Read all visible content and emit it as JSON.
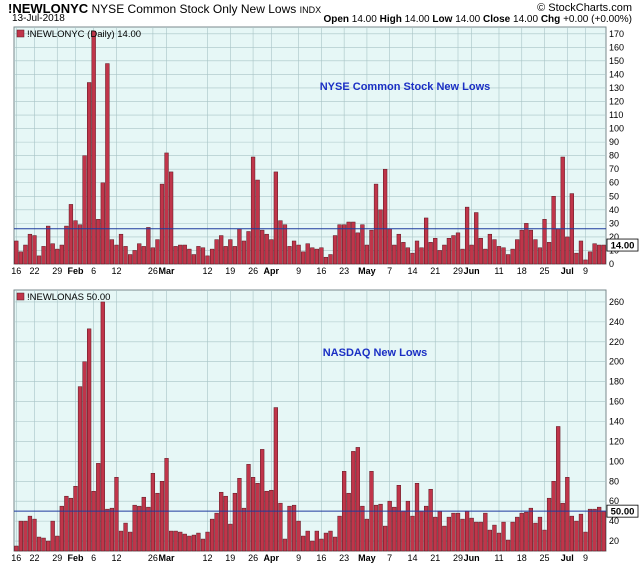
{
  "header": {
    "symbol": "!NEWLONYC",
    "description": "NYSE Common Stock Only New Lows",
    "exchange": "INDX",
    "date": "13-Jul-2018",
    "logo": "© StockCharts.com",
    "quote": {
      "open_label": "Open",
      "open": "14.00",
      "high_label": "High",
      "high": "14.00",
      "low_label": "Low",
      "low": "14.00",
      "close_label": "Close",
      "close": "14.00",
      "chg_label": "Chg",
      "chg": "+0.00 (+0.00%)"
    }
  },
  "colors": {
    "plot_bg": "#e6f7f6",
    "bar_fill": "#c0354a",
    "bar_stroke": "#5a1620",
    "reference_line": "#1f3b9e",
    "annotation": "#1a2fc4",
    "grid": "#a8c4c6",
    "current_value_box": "#ffffff"
  },
  "x_axis": {
    "labels": [
      {
        "i": 0,
        "text": "16",
        "bold": false
      },
      {
        "i": 4,
        "text": "22",
        "bold": false
      },
      {
        "i": 9,
        "text": "29",
        "bold": false
      },
      {
        "i": 13,
        "text": "Feb",
        "bold": true
      },
      {
        "i": 17,
        "text": "6",
        "bold": false
      },
      {
        "i": 22,
        "text": "12",
        "bold": false
      },
      {
        "i": 30,
        "text": "26",
        "bold": false
      },
      {
        "i": 33,
        "text": "Mar",
        "bold": true
      },
      {
        "i": 42,
        "text": "12",
        "bold": false
      },
      {
        "i": 47,
        "text": "19",
        "bold": false
      },
      {
        "i": 52,
        "text": "26",
        "bold": false
      },
      {
        "i": 56,
        "text": "Apr",
        "bold": true
      },
      {
        "i": 62,
        "text": "9",
        "bold": false
      },
      {
        "i": 67,
        "text": "16",
        "bold": false
      },
      {
        "i": 72,
        "text": "23",
        "bold": false
      },
      {
        "i": 77,
        "text": "May",
        "bold": true
      },
      {
        "i": 82,
        "text": "7",
        "bold": false
      },
      {
        "i": 87,
        "text": "14",
        "bold": false
      },
      {
        "i": 92,
        "text": "21",
        "bold": false
      },
      {
        "i": 97,
        "text": "29",
        "bold": false
      },
      {
        "i": 100,
        "text": "Jun",
        "bold": true
      },
      {
        "i": 106,
        "text": "11",
        "bold": false
      },
      {
        "i": 111,
        "text": "18",
        "bold": false
      },
      {
        "i": 116,
        "text": "25",
        "bold": false
      },
      {
        "i": 121,
        "text": "Jul",
        "bold": true
      },
      {
        "i": 125,
        "text": "9",
        "bold": false
      }
    ]
  },
  "chart_data": [
    {
      "type": "bar",
      "legend": "!NEWLONYC (Daily) 14.00",
      "title": "NYSE Common Stock New Lows",
      "current_value_label": "14.00",
      "current_value": 14,
      "ylim": [
        0,
        175
      ],
      "yticks": [
        0,
        10,
        20,
        30,
        40,
        50,
        60,
        70,
        80,
        90,
        100,
        110,
        120,
        130,
        140,
        150,
        160,
        170
      ],
      "reference_line": 26,
      "values": [
        17,
        9,
        14,
        22,
        21,
        6,
        13,
        28,
        15,
        11,
        14,
        28,
        44,
        32,
        29,
        80,
        134,
        172,
        33,
        60,
        148,
        18,
        14,
        22,
        13,
        7,
        10,
        15,
        13,
        27,
        12,
        18,
        59,
        82,
        68,
        13,
        14,
        14,
        11,
        7,
        13,
        12,
        6,
        11,
        18,
        21,
        13,
        18,
        13,
        26,
        17,
        24,
        79,
        62,
        25,
        22,
        18,
        68,
        32,
        29,
        13,
        17,
        14,
        9,
        15,
        12,
        11,
        12,
        5,
        7,
        21,
        29,
        29,
        31,
        31,
        23,
        29,
        14,
        25,
        59,
        40,
        70,
        26,
        14,
        22,
        16,
        12,
        8,
        17,
        12,
        34,
        16,
        19,
        10,
        14,
        19,
        21,
        23,
        11,
        42,
        14,
        38,
        19,
        11,
        22,
        18,
        13,
        12,
        7,
        11,
        18,
        25,
        30,
        25,
        18,
        12,
        33,
        16,
        50,
        26,
        79,
        20,
        52,
        8,
        17,
        3,
        9,
        15,
        14,
        14
      ]
    },
    {
      "type": "bar",
      "legend": "!NEWLONAS 50.00",
      "title": "NASDAQ New Lows",
      "current_value_label": "50.00",
      "current_value": 50,
      "ylim": [
        10,
        272
      ],
      "yticks": [
        20,
        40,
        60,
        80,
        100,
        120,
        140,
        160,
        180,
        200,
        220,
        240,
        260
      ],
      "reference_line": 50,
      "values": [
        15,
        40,
        40,
        45,
        42,
        24,
        23,
        20,
        40,
        25,
        55,
        65,
        63,
        75,
        175,
        200,
        233,
        70,
        98,
        260,
        52,
        53,
        84,
        30,
        38,
        29,
        56,
        55,
        64,
        54,
        88,
        68,
        80,
        103,
        30,
        30,
        29,
        27,
        25,
        26,
        28,
        22,
        29,
        42,
        48,
        69,
        65,
        37,
        68,
        83,
        53,
        97,
        84,
        78,
        112,
        70,
        71,
        154,
        58,
        22,
        55,
        56,
        40,
        25,
        30,
        20,
        30,
        22,
        28,
        30,
        24,
        45,
        90,
        68,
        110,
        114,
        55,
        42,
        90,
        56,
        57,
        35,
        60,
        54,
        76,
        50,
        60,
        45,
        78,
        50,
        55,
        72,
        44,
        50,
        35,
        44,
        48,
        48,
        42,
        50,
        43,
        39,
        39,
        48,
        31,
        36,
        28,
        39,
        21,
        39,
        44,
        48,
        49,
        53,
        38,
        44,
        31,
        63,
        80,
        135,
        58,
        84,
        45,
        40,
        47,
        29,
        52,
        52,
        54,
        50
      ]
    }
  ]
}
